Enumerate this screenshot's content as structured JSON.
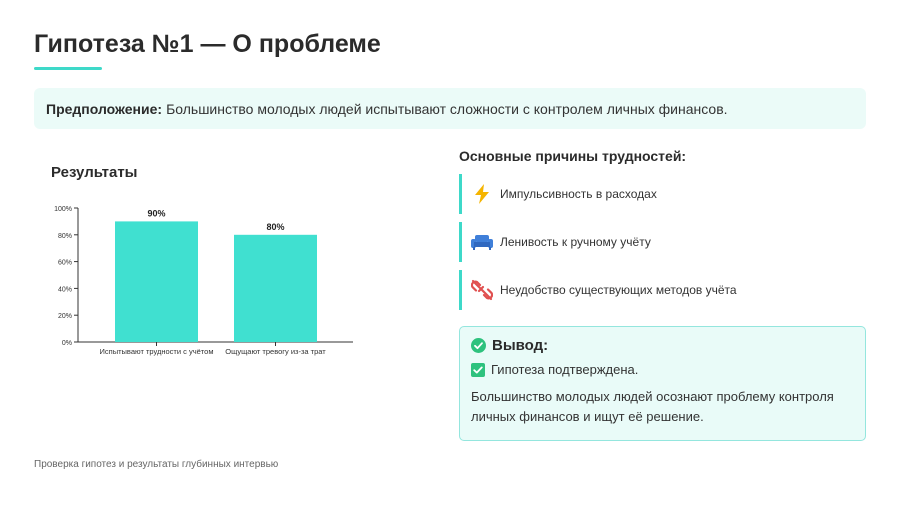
{
  "slide": {
    "title": "Гипотеза №1 — О проблеме",
    "footer": "Проверка гипотез и результаты глубинных интервью"
  },
  "hypothesis": {
    "label": "Предположение:",
    "text": "Большинство молодых людей испытывают сложности с контролем личных финансов."
  },
  "results": {
    "title": "Результаты"
  },
  "chart_data": {
    "type": "bar",
    "categories": [
      "Испытывают трудности с учётом",
      "Ощущают тревогу из-за трат"
    ],
    "values": [
      90,
      80
    ],
    "data_labels": [
      "90%",
      "80%"
    ],
    "y_ticks": [
      "0%",
      "20%",
      "40%",
      "60%",
      "80%",
      "100%"
    ],
    "ylim": [
      0,
      100
    ],
    "title": "",
    "xlabel": "",
    "ylabel": "",
    "grid": false,
    "bar_color": "#40e0d0"
  },
  "reasons": {
    "title": "Основные причины трудностей:",
    "items": [
      {
        "label": "Импульсивность в расходах",
        "icon": "lightning-icon",
        "color": "#f5b400"
      },
      {
        "label": "Ленивость к ручному учёту",
        "icon": "couch-icon",
        "color": "#3f7fd9"
      },
      {
        "label": "Неудобство существующих методов учёта",
        "icon": "broken-link-icon",
        "color": "#e05050"
      }
    ]
  },
  "conclusion": {
    "title": "Вывод:",
    "confirmed": "Гипотеза подтверждена.",
    "text": "Большинство молодых людей осознают проблему контроля личных финансов и ищут её решение."
  },
  "colors": {
    "accent": "#3ed9c9",
    "check": "#2ec27e"
  }
}
